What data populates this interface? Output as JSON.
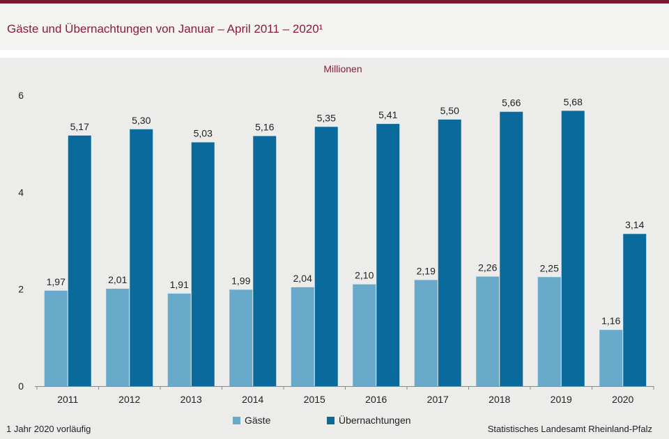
{
  "header": {
    "title": "Gäste und Übernachtungen von Januar – April 2011 – 2020¹"
  },
  "chart_data": {
    "type": "bar",
    "unit_label": "Millionen",
    "categories": [
      "2011",
      "2012",
      "2013",
      "2014",
      "2015",
      "2016",
      "2017",
      "2018",
      "2019",
      "2020"
    ],
    "series": [
      {
        "name": "Gäste",
        "color": "#69a9c9",
        "values": [
          1.97,
          2.01,
          1.91,
          1.99,
          2.04,
          2.1,
          2.19,
          2.26,
          2.25,
          1.16
        ],
        "labels": [
          "1,97",
          "2,01",
          "1,91",
          "1,99",
          "2,04",
          "2,10",
          "2,19",
          "2,26",
          "2,25",
          "1,16"
        ]
      },
      {
        "name": "Übernachtungen",
        "color": "#0a6a9c",
        "values": [
          5.17,
          5.3,
          5.03,
          5.16,
          5.35,
          5.41,
          5.5,
          5.66,
          5.68,
          3.14
        ],
        "labels": [
          "5,17",
          "5,30",
          "5,03",
          "5,16",
          "5,35",
          "5,41",
          "5,50",
          "5,66",
          "5,68",
          "3,14"
        ]
      }
    ],
    "ylim": [
      0,
      6
    ],
    "yticks": [
      0,
      2,
      4,
      6
    ],
    "ytick_labels": [
      "0",
      "2",
      "4",
      "6"
    ],
    "grid": false,
    "legend_position": "bottom-center"
  },
  "footer": {
    "footnote": "1 Jahr 2020 vorläufig",
    "source": "Statistisches Landesamt  Rheinland-Pfalz"
  }
}
